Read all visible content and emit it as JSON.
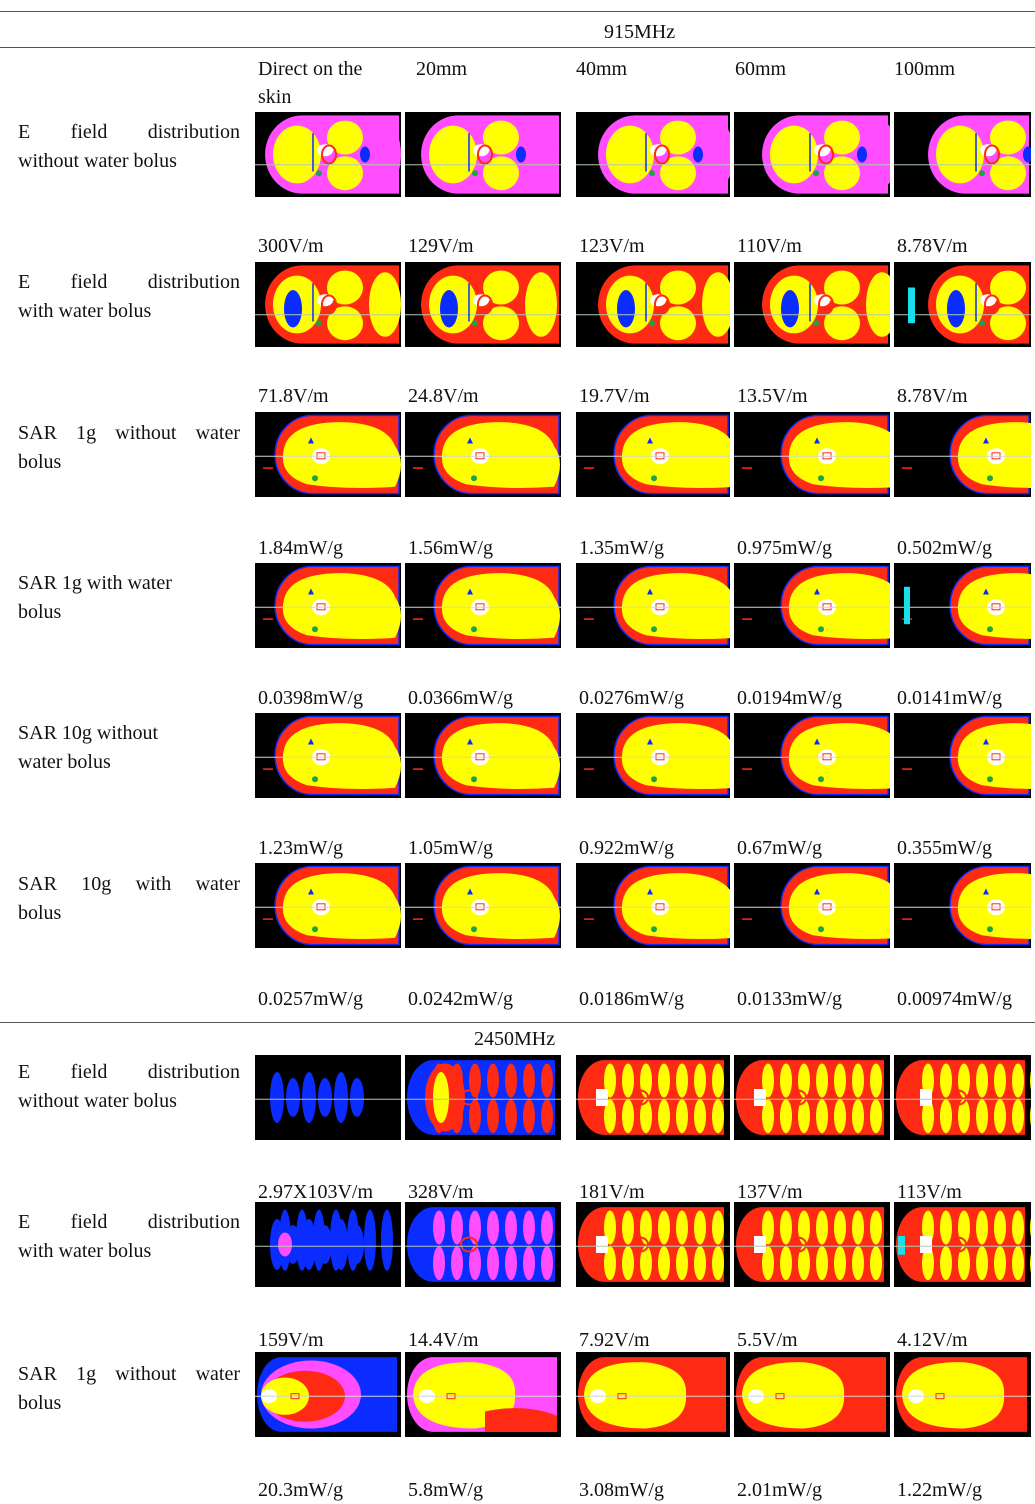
{
  "sections": [
    {
      "title": "915MHz",
      "columns": [
        "Direct on the skin",
        "20mm",
        "40mm",
        "60mm",
        "100mm"
      ],
      "rows": [
        {
          "label_line1": "E field distribution",
          "label_line2": "without water bolus",
          "map_style": "efield-no-bolus",
          "values": [
            "300V/m",
            "129V/m",
            "123V/m",
            "110V/m",
            "8.78V/m"
          ]
        },
        {
          "label_line1": "E field distribution",
          "label_line2": "with water bolus",
          "map_style": "efield-bolus",
          "values": [
            "71.8V/m",
            "24.8V/m",
            "19.7V/m",
            "13.5V/m",
            "8.78V/m"
          ]
        },
        {
          "label_line1": "SAR 1g without water",
          "label_line2": "bolus",
          "map_style": "sar-head",
          "values": [
            "1.84mW/g",
            "1.56mW/g",
            "1.35mW/g",
            "0.975mW/g",
            "0.502mW/g"
          ]
        },
        {
          "label_line1": "SAR 1g with water",
          "label_line2": "bolus",
          "map_style": "sar-head",
          "values": [
            "0.0398mW/g",
            "0.0366mW/g",
            "0.0276mW/g",
            "0.0194mW/g",
            "0.0141mW/g"
          ]
        },
        {
          "label_line1": "SAR 10g without",
          "label_line2": "water bolus",
          "map_style": "sar-head",
          "values": [
            "1.23mW/g",
            "1.05mW/g",
            "0.922mW/g",
            "0.67mW/g",
            "0.355mW/g"
          ]
        },
        {
          "label_line1": "SAR 10g with water",
          "label_line2": "bolus",
          "map_style": "sar-head",
          "values": [
            "0.0257mW/g",
            "0.0242mW/g",
            "0.0186mW/g",
            "0.0133mW/g",
            "0.00974mW/g"
          ]
        }
      ]
    },
    {
      "title": "2450MHz",
      "rows": [
        {
          "label_line1": "E field distribution",
          "label_line2": "without water bolus",
          "map_style": "efield-2450",
          "values": [
            "2.97X103V/m",
            "328V/m",
            "181V/m",
            "137V/m",
            "113V/m"
          ]
        },
        {
          "label_line1": "E field distribution",
          "label_line2": "with water bolus",
          "map_style": "efield-2450-bolus",
          "values": [
            "159V/m",
            "14.4V/m",
            "7.92V/m",
            "5.5V/m",
            "4.12V/m"
          ]
        },
        {
          "label_line1": "SAR 1g without water",
          "label_line2": "bolus",
          "map_style": "sar-2450",
          "values": [
            "20.3mW/g",
            "5.8mW/g",
            "3.08mW/g",
            "2.01mW/g",
            "1.22mW/g"
          ]
        }
      ]
    }
  ],
  "colors": {
    "background": "#000000",
    "low": "#0a2cff",
    "mid_low": "#ff4dff",
    "mid": "#ff2a14",
    "high": "#ffff00",
    "peak": "#ffffff",
    "bolus": "#19e0e8"
  }
}
